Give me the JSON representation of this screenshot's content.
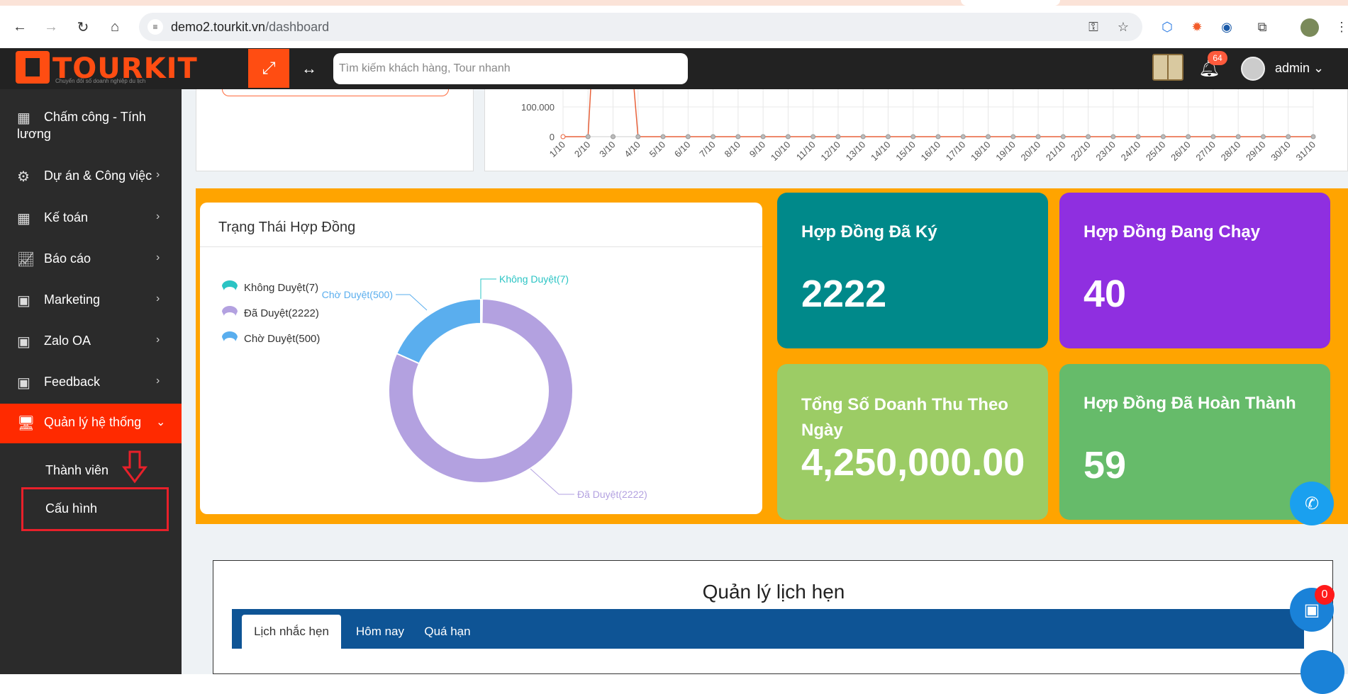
{
  "browser": {
    "url_domain": "demo2.tourkit.vn",
    "url_path": "/dashboard"
  },
  "header": {
    "logo_text": "TOURKIT",
    "logo_tagline": "Chuyển đổi số doanh nghiệp du lịch",
    "search_placeholder": "Tìm kiếm khách hàng, Tour nhanh",
    "notification_count": "64",
    "user_name": "admin"
  },
  "sidebar": {
    "items": [
      {
        "label_line1": "Chấm công - Tính",
        "label_line2": "lương",
        "icon": "calculator-icon"
      },
      {
        "label": "Dự án & Công việc",
        "icon": "project-icon"
      },
      {
        "label": "Kế toán",
        "icon": "calculator-icon"
      },
      {
        "label": "Báo cáo",
        "icon": "chart-icon"
      },
      {
        "label": "Marketing",
        "icon": "marketing-icon"
      },
      {
        "label": "Zalo OA",
        "icon": "zalo-icon"
      },
      {
        "label": "Feedback",
        "icon": "feedback-icon"
      },
      {
        "label": "Quản lý hệ thống",
        "icon": "monitor-icon"
      }
    ],
    "sub_items": [
      "Thành viên",
      "Cấu hình"
    ]
  },
  "line_chart": {
    "y_ticks": [
      "100.000",
      "0"
    ],
    "x_ticks": [
      "1/10",
      "2/10",
      "3/10",
      "4/10",
      "5/10",
      "6/10",
      "7/10",
      "8/10",
      "9/10",
      "10/10",
      "11/10",
      "12/10",
      "13/10",
      "14/10",
      "15/10",
      "16/10",
      "17/10",
      "18/10",
      "19/10",
      "20/10",
      "21/10",
      "22/10",
      "23/10",
      "24/10",
      "25/10",
      "26/10",
      "27/10",
      "28/10",
      "29/10",
      "30/10",
      "31/10"
    ]
  },
  "pie_card": {
    "title": "Trạng Thái Hợp Đồng"
  },
  "chart_data": {
    "type": "pie",
    "variant": "donut",
    "slices": [
      {
        "name": "Không Duyệt",
        "value": 7,
        "color": "#2bc4c4",
        "legend": "Không Duyệt(7)",
        "callout": "Không Duyệt(7)"
      },
      {
        "name": "Đã Duyệt",
        "value": 2222,
        "color": "#b3a1e0",
        "legend": "Đã Duyệt(2222)",
        "callout": "Đã Duyệt(2222)"
      },
      {
        "name": "Chờ Duyệt",
        "value": 500,
        "color": "#5aaeee",
        "legend": "Chờ Duyệt(500)",
        "callout": "Chờ Duyệt(500)"
      }
    ],
    "legend_position": "left"
  },
  "stats": [
    {
      "title": "Hợp Đồng Đã Ký",
      "value": "2222",
      "color": "#00898a"
    },
    {
      "title": "Hợp Đồng Đang Chạy",
      "value": "40",
      "color": "#8f2fe0"
    },
    {
      "title": "Tổng Số Doanh Thu Theo Ngày",
      "value": "4,250,000.00",
      "color": "#9ccc65"
    },
    {
      "title": "Hợp Đồng Đã Hoàn Thành",
      "value": "59",
      "color": "#66bb6a"
    }
  ],
  "appointments": {
    "title": "Quản lý lịch hẹn",
    "tabs": [
      "Lịch nhắc hẹn",
      "Hôm nay",
      "Quá hạn"
    ],
    "badge": "0"
  }
}
